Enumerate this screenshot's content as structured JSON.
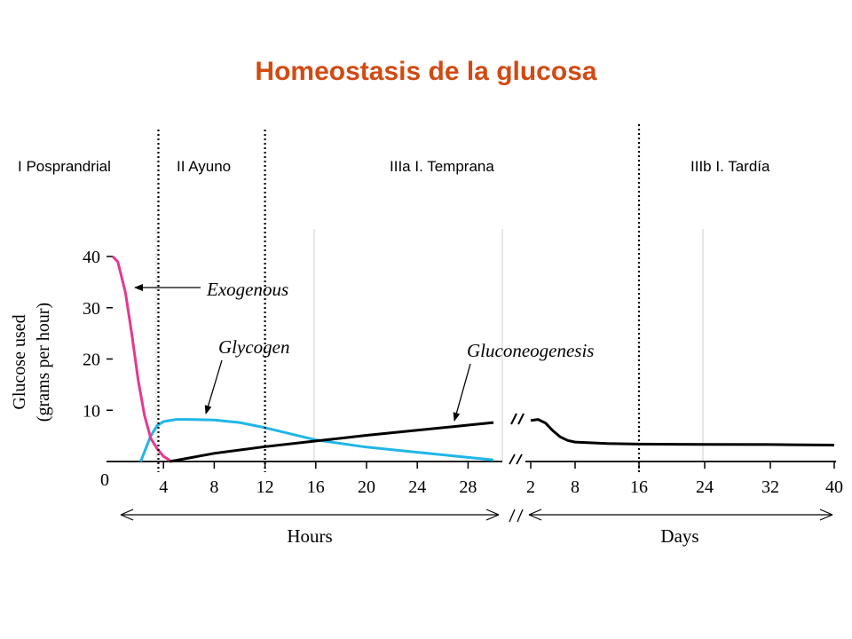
{
  "title": "Homeostasis de la glucosa",
  "phases": [
    "I Posprandrial",
    "II Ayuno",
    "IIIa I. Temprana",
    "IIIb I. Tardía"
  ],
  "chart_data": {
    "type": "line",
    "ylabel_line1": "Glucose used",
    "ylabel_line2": "(grams per hour)",
    "ylim": [
      0,
      40
    ],
    "yticks": [
      "0",
      "10",
      "20",
      "30",
      "40"
    ],
    "x_segments": [
      {
        "label": "Hours",
        "unit": "hours",
        "ticks": [
          "4",
          "8",
          "12",
          "16",
          "20",
          "24",
          "28"
        ],
        "range": [
          0,
          31
        ]
      },
      {
        "label": "Days",
        "unit": "days",
        "ticks": [
          "2",
          "8",
          "16",
          "24",
          "32",
          "40"
        ],
        "range": [
          2,
          40
        ]
      }
    ],
    "series": [
      {
        "name": "Exogenous",
        "color": "#e8368f",
        "segment": "hours",
        "points": [
          [
            0,
            40
          ],
          [
            0.4,
            39
          ],
          [
            1,
            33
          ],
          [
            1.5,
            25
          ],
          [
            2,
            16
          ],
          [
            2.5,
            9
          ],
          [
            3,
            4.5
          ],
          [
            3.5,
            2.5
          ],
          [
            4,
            1
          ],
          [
            4.5,
            0.2
          ]
        ]
      },
      {
        "name": "Glycogen",
        "color": "#1fb6e8",
        "segment": "hours",
        "points": [
          [
            2.2,
            0
          ],
          [
            2.6,
            2.5
          ],
          [
            3,
            5
          ],
          [
            3.5,
            7
          ],
          [
            4,
            7.8
          ],
          [
            5,
            8.2
          ],
          [
            6,
            8.2
          ],
          [
            8,
            8.1
          ],
          [
            10,
            7.6
          ],
          [
            12,
            6.6
          ],
          [
            14,
            5.4
          ],
          [
            16,
            4.2
          ],
          [
            20,
            2.8
          ],
          [
            24,
            1.8
          ],
          [
            28,
            0.8
          ],
          [
            30,
            0.3
          ]
        ]
      },
      {
        "name": "Gluconeogenesis",
        "color": "#000000",
        "segment": "hours+days",
        "points_hours": [
          [
            4.5,
            0
          ],
          [
            8,
            1.6
          ],
          [
            12,
            2.9
          ],
          [
            16,
            4.0
          ],
          [
            20,
            5.1
          ],
          [
            24,
            6.1
          ],
          [
            28,
            7.1
          ],
          [
            30,
            7.6
          ]
        ],
        "points_days": [
          [
            2,
            8
          ],
          [
            3,
            8.2
          ],
          [
            4,
            7.5
          ],
          [
            5,
            6
          ],
          [
            6,
            4.8
          ],
          [
            7,
            4.1
          ],
          [
            8,
            3.8
          ],
          [
            12,
            3.5
          ],
          [
            16,
            3.4
          ],
          [
            24,
            3.35
          ],
          [
            32,
            3.3
          ],
          [
            40,
            3.2
          ]
        ]
      }
    ],
    "phase_boundaries": [
      {
        "segment": "hours",
        "x": 3.6
      },
      {
        "segment": "hours",
        "x": 12
      },
      {
        "segment": "days",
        "x": 16
      }
    ]
  }
}
